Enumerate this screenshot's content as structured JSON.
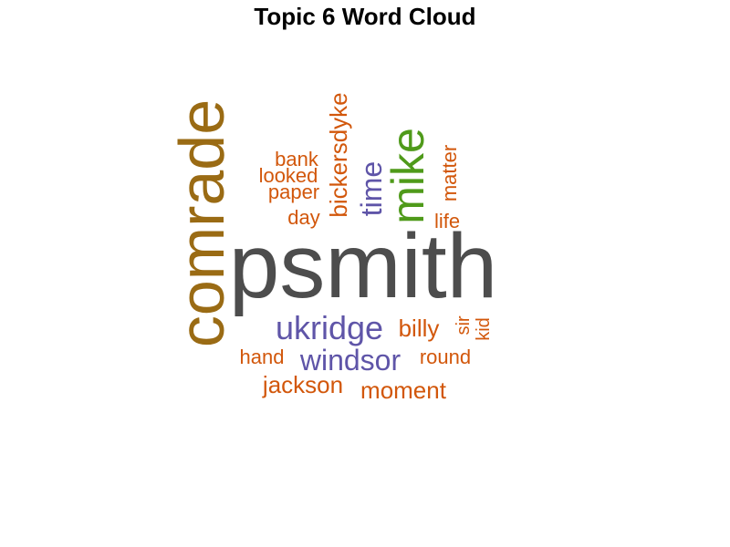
{
  "chart_data": {
    "type": "wordcloud",
    "title": "Topic 6 Word Cloud",
    "words": [
      {
        "text": "psmith",
        "color": "#4d4d4d"
      },
      {
        "text": "comrade",
        "color": "#9a6b14"
      },
      {
        "text": "mike",
        "color": "#4f9a1a"
      },
      {
        "text": "ukridge",
        "color": "#5f55a8"
      },
      {
        "text": "windsor",
        "color": "#5f55a8"
      },
      {
        "text": "time",
        "color": "#5f55a8"
      },
      {
        "text": "bickersdyke",
        "color": "#d2570b"
      },
      {
        "text": "billy",
        "color": "#d2570b"
      },
      {
        "text": "jackson",
        "color": "#d2570b"
      },
      {
        "text": "moment",
        "color": "#d2570b"
      },
      {
        "text": "bank",
        "color": "#d2570b"
      },
      {
        "text": "looked",
        "color": "#d2570b"
      },
      {
        "text": "paper",
        "color": "#d2570b"
      },
      {
        "text": "day",
        "color": "#d2570b"
      },
      {
        "text": "hand",
        "color": "#d2570b"
      },
      {
        "text": "round",
        "color": "#d2570b"
      },
      {
        "text": "matter",
        "color": "#d2570b"
      },
      {
        "text": "life",
        "color": "#d2570b"
      },
      {
        "text": "sir",
        "color": "#d2570b"
      },
      {
        "text": "kid",
        "color": "#d2570b"
      }
    ]
  }
}
